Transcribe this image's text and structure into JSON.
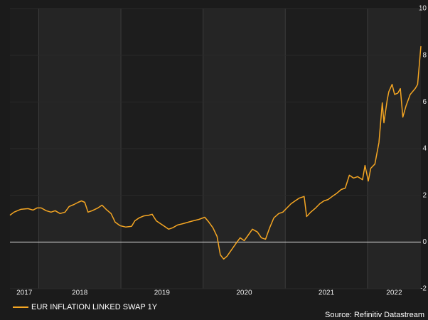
{
  "chart_data": {
    "type": "line",
    "x": [
      2017.65,
      2017.7,
      2017.78,
      2017.87,
      2017.93,
      2017.98,
      2018.03,
      2018.09,
      2018.15,
      2018.2,
      2018.26,
      2018.32,
      2018.37,
      2018.43,
      2018.48,
      2018.52,
      2018.56,
      2018.6,
      2018.65,
      2018.72,
      2018.77,
      2018.82,
      2018.88,
      2018.93,
      2018.99,
      2019.06,
      2019.13,
      2019.17,
      2019.22,
      2019.28,
      2019.34,
      2019.38,
      2019.43,
      2019.48,
      2019.53,
      2019.58,
      2019.63,
      2019.69,
      2019.76,
      2019.82,
      2019.88,
      2019.95,
      2020.02,
      2020.07,
      2020.12,
      2020.17,
      2020.21,
      2020.25,
      2020.29,
      2020.34,
      2020.4,
      2020.45,
      2020.5,
      2020.55,
      2020.6,
      2020.66,
      2020.71,
      2020.76,
      2020.81,
      2020.86,
      2020.92,
      2020.97,
      2021.02,
      2021.07,
      2021.12,
      2021.17,
      2021.23,
      2021.26,
      2021.31,
      2021.37,
      2021.42,
      2021.47,
      2021.52,
      2021.57,
      2021.62,
      2021.68,
      2021.73,
      2021.78,
      2021.83,
      2021.88,
      2021.94,
      2021.97,
      2022.01,
      2022.04,
      2022.09,
      2022.14,
      2022.18,
      2022.2,
      2022.24,
      2022.26,
      2022.3,
      2022.33,
      2022.37,
      2022.4,
      2022.43,
      2022.47,
      2022.52,
      2022.58,
      2022.61,
      2022.65
    ],
    "series": [
      {
        "name": "EUR INFLATION LINKED SWAP 1Y",
        "color": "#f5a623",
        "values": [
          1.15,
          1.28,
          1.4,
          1.43,
          1.37,
          1.46,
          1.46,
          1.34,
          1.28,
          1.34,
          1.22,
          1.28,
          1.52,
          1.61,
          1.7,
          1.76,
          1.7,
          1.28,
          1.34,
          1.46,
          1.58,
          1.4,
          1.22,
          0.85,
          0.7,
          0.64,
          0.67,
          0.91,
          1.03,
          1.12,
          1.15,
          1.19,
          0.91,
          0.79,
          0.67,
          0.55,
          0.61,
          0.73,
          0.79,
          0.85,
          0.91,
          0.97,
          1.06,
          0.85,
          0.61,
          0.24,
          -0.55,
          -0.73,
          -0.61,
          -0.36,
          -0.06,
          0.18,
          0.06,
          0.3,
          0.55,
          0.43,
          0.18,
          0.12,
          0.61,
          1.03,
          1.22,
          1.28,
          1.46,
          1.64,
          1.76,
          1.88,
          1.95,
          1.09,
          1.28,
          1.46,
          1.64,
          1.76,
          1.82,
          1.95,
          2.07,
          2.25,
          2.31,
          2.86,
          2.74,
          2.8,
          2.67,
          3.28,
          2.61,
          3.16,
          3.34,
          4.26,
          5.96,
          5.11,
          6.08,
          6.44,
          6.75,
          6.32,
          6.38,
          6.57,
          5.35,
          5.84,
          6.32,
          6.57,
          6.75,
          8.39
        ]
      }
    ],
    "xlim": [
      2017.65,
      2022.65
    ],
    "xticks": [
      {
        "value": 2017,
        "label": "2017"
      },
      {
        "value": 2018,
        "label": "2018"
      },
      {
        "value": 2019,
        "label": "2019"
      },
      {
        "value": 2020,
        "label": "2020"
      },
      {
        "value": 2021,
        "label": "2021"
      },
      {
        "value": 2022,
        "label": "2022"
      }
    ],
    "ylim": [
      -2,
      10
    ],
    "yticks": [
      -2,
      0,
      2,
      4,
      6,
      8,
      10
    ],
    "grid": true,
    "legend": "bottom-left",
    "source": "Source: Refinitiv Datastream"
  }
}
